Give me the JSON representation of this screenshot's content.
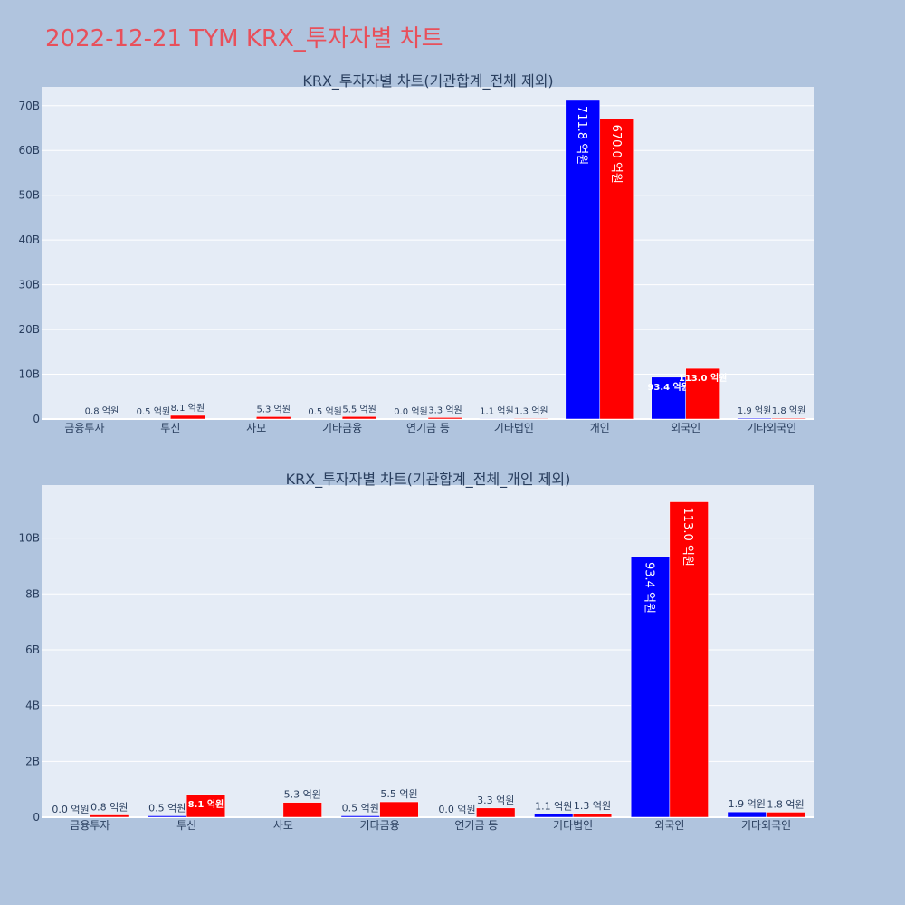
{
  "page_title": "2022-12-21 TYM KRX_투자자별 차트",
  "colors": {
    "buy": "#0000ff",
    "sell": "#ff0000",
    "plot_bg": "#e5ecf6",
    "page_bg": "#b0c4de"
  },
  "chart_data": [
    {
      "type": "bar",
      "title": "KRX_투자자별 차트(기관합계_전체 제외)",
      "categories": [
        "금융투자",
        "투신",
        "사모",
        "기타금융",
        "연기금 등",
        "기타법인",
        "개인",
        "외국인",
        "기타외국인"
      ],
      "series": [
        {
          "color": "#0000ff",
          "values": [
            0.0,
            0.05,
            0.0,
            0.05,
            0.0,
            0.11,
            71.18,
            9.34,
            0.19
          ],
          "labels": [
            "",
            "0.5 억원",
            "",
            "0.5 억원",
            "0.0 억원",
            "1.1 억원",
            "711.8 억원",
            "93.4 억원",
            "1.9 억원"
          ]
        },
        {
          "color": "#ff0000",
          "values": [
            0.08,
            0.81,
            0.53,
            0.55,
            0.33,
            0.13,
            67.0,
            11.3,
            0.18
          ],
          "labels": [
            "0.8 억원",
            "8.1 억원",
            "5.3 억원",
            "5.5 억원",
            "3.3 억원",
            "1.3 억원",
            "670.0 억원",
            "113.0 억원",
            "1.8 억원"
          ]
        }
      ],
      "yticks": [
        0,
        10,
        20,
        30,
        40,
        50,
        60,
        70
      ],
      "ytick_labels": [
        "0",
        "10B",
        "20B",
        "30B",
        "40B",
        "50B",
        "60B",
        "70B"
      ],
      "ylim": [
        0,
        74.2
      ]
    },
    {
      "type": "bar",
      "title": "KRX_투자자별 차트(기관합계_전체_개인 제외)",
      "categories": [
        "금융투자",
        "투신",
        "사모",
        "기타금융",
        "연기금 등",
        "기타법인",
        "외국인",
        "기타외국인"
      ],
      "series": [
        {
          "color": "#0000ff",
          "values": [
            0.0,
            0.05,
            0.0,
            0.05,
            0.0,
            0.11,
            9.34,
            0.19
          ],
          "labels": [
            "0.0 억원",
            "0.5 억원",
            "",
            "0.5 억원",
            "0.0 억원",
            "1.1 억원",
            "93.4 억원",
            "1.9 억원"
          ]
        },
        {
          "color": "#ff0000",
          "values": [
            0.08,
            0.81,
            0.53,
            0.55,
            0.33,
            0.13,
            11.3,
            0.18
          ],
          "labels": [
            "0.8 억원",
            "8.1 억원",
            "5.3 억원",
            "5.5 억원",
            "3.3 억원",
            "1.3 억원",
            "113.0 억원",
            "1.8 억원"
          ]
        }
      ],
      "yticks": [
        0,
        2,
        4,
        6,
        8,
        10
      ],
      "ytick_labels": [
        "0",
        "2B",
        "4B",
        "6B",
        "8B",
        "10B"
      ],
      "ylim": [
        0,
        11.9
      ]
    }
  ]
}
